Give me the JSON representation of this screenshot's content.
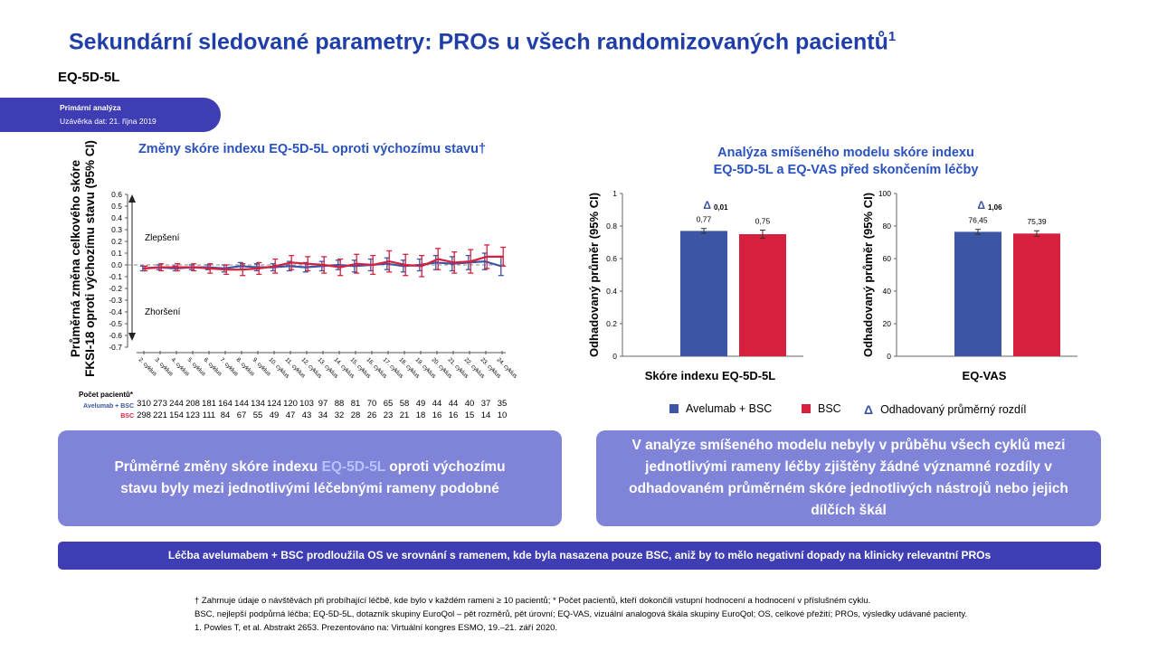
{
  "header": {
    "title": "Sekundární sledované parametry: PROs u všech randomizovaných pacientů",
    "title_sup": "1",
    "subtitle": "EQ-5D-5L",
    "pill_line1": "Primární analýza",
    "pill_line2": "Uzávěrka dat: 21. října 2019"
  },
  "left_chart": {
    "title": "Změny skóre indexu EQ-5D-5L oproti výchozímu stavu†",
    "ylabel_line1": "Průměrná změna celkového skóre",
    "ylabel_line2": "FKSI-18 oproti výchozímu stavu (95% CI)",
    "improve_label": "Zlepšení",
    "worsen_label": "Zhoršení",
    "counts_title": "Počet pacientů*",
    "counts_avelumab_label": "Avelumab + BSC",
    "counts_bsc_label": "BSC"
  },
  "right_panel": {
    "title_line1": "Analýza smíšeného modelu skóre indexu",
    "title_line2": "EQ-5D-5L a EQ-VAS před skončením léčby"
  },
  "legend": {
    "avelumab": "Avelumab  + BSC",
    "bsc": "BSC",
    "diff": "Odhadovaný  průměrný rozdíl"
  },
  "colors": {
    "avelumab": "#3c55a5",
    "bsc": "#d71f3e",
    "title_blue": "#1f3ea8",
    "box": "#7f84d8",
    "banner": "#3f3db4"
  },
  "chart_data": [
    {
      "type": "line",
      "x": [
        "2. cyklus",
        "3. cyklus",
        "4. cyklus",
        "5. cyklus",
        "6. cyklus",
        "7. cyklus",
        "8. cyklus",
        "9. cyklus",
        "10. cyklus",
        "11. cyklus",
        "12. cyklus",
        "13. cyklus",
        "14. cyklus",
        "15. cyklus",
        "16. cyklus",
        "17. cyklus",
        "18. cyklus",
        "19. cyklus",
        "20. cyklus",
        "21. cyklus",
        "22. cyklus",
        "23. cyklus",
        "24. cyklus"
      ],
      "ylim": [
        -0.7,
        0.6
      ],
      "yticks": [
        "0.6",
        "0.5",
        "0.4",
        "0.3",
        "0.2",
        "0.1",
        "0.0",
        "-0.1",
        "-0.2",
        "-0.3",
        "-0.4",
        "-0.5",
        "-0.6",
        "-0.7"
      ],
      "series": [
        {
          "name": "Avelumab + BSC",
          "values": [
            -0.03,
            -0.02,
            -0.03,
            -0.02,
            -0.02,
            -0.03,
            -0.01,
            -0.02,
            -0.02,
            -0.01,
            -0.02,
            -0.01,
            0.0,
            -0.01,
            0.0,
            0.01,
            -0.01,
            0.0,
            0.02,
            0.01,
            0.02,
            0.03,
            -0.01
          ],
          "ci": [
            0.02,
            0.02,
            0.02,
            0.02,
            0.02,
            0.03,
            0.03,
            0.03,
            0.03,
            0.04,
            0.04,
            0.04,
            0.04,
            0.05,
            0.05,
            0.05,
            0.05,
            0.05,
            0.06,
            0.06,
            0.06,
            0.07,
            0.08
          ]
        },
        {
          "name": "BSC",
          "values": [
            -0.03,
            -0.02,
            -0.02,
            -0.02,
            -0.03,
            -0.04,
            -0.04,
            -0.03,
            -0.01,
            0.02,
            0.01,
            0.0,
            -0.02,
            0.01,
            0.0,
            0.03,
            0.0,
            -0.01,
            0.05,
            0.02,
            0.03,
            0.07,
            0.07
          ],
          "ci": [
            0.02,
            0.03,
            0.03,
            0.03,
            0.04,
            0.04,
            0.05,
            0.05,
            0.06,
            0.06,
            0.06,
            0.07,
            0.07,
            0.08,
            0.08,
            0.09,
            0.09,
            0.09,
            0.09,
            0.09,
            0.1,
            0.1,
            0.08
          ]
        }
      ],
      "counts_avelumab": [
        "310",
        "273",
        "244",
        "208",
        "181",
        "164",
        "144",
        "134",
        "124",
        "120",
        "103",
        "97",
        "88",
        "81",
        "70",
        "65",
        "58",
        "49",
        "44",
        "44",
        "40",
        "37",
        "35"
      ],
      "counts_bsc": [
        "298",
        "221",
        "154",
        "123",
        "111",
        "84",
        "67",
        "55",
        "49",
        "47",
        "43",
        "34",
        "32",
        "28",
        "26",
        "23",
        "21",
        "18",
        "16",
        "16",
        "15",
        "14",
        "10"
      ]
    },
    {
      "type": "bar",
      "xlabel": "Skóre indexu EQ-5D-5L",
      "ylabel": "Odhadovaný průměr (95% CI)",
      "ylim": [
        0,
        1
      ],
      "yticks": [
        "1",
        "0.8",
        "0.6",
        "0.4",
        "0.2",
        "0"
      ],
      "values": [
        0.77,
        0.75
      ],
      "ci": [
        0.015,
        0.025
      ],
      "value_labels": [
        "0,77",
        "0,75"
      ],
      "diff_label": "0,01"
    },
    {
      "type": "bar",
      "xlabel": "EQ-VAS",
      "ylabel": "Odhadovaný průměr (95% CI)",
      "ylim": [
        0,
        100
      ],
      "yticks": [
        "100",
        "80",
        "60",
        "40",
        "20",
        "0"
      ],
      "values": [
        76.45,
        75.39
      ],
      "ci": [
        1.5,
        1.7
      ],
      "value_labels": [
        "76,45",
        "75,39"
      ],
      "diff_label": "1,06"
    }
  ],
  "box_left": {
    "part1": "Průměrné změny skóre indexu ",
    "highlight": "EQ-5D-5L",
    "part2": " oproti výchozímu stavu byly mezi jednotlivými léčebnými rameny podobné"
  },
  "box_right": "V analýze smíšeného modelu nebyly v průběhu všech cyklů mezi jednotlivými rameny léčby zjištěny žádné významné rozdíly v odhadovaném průměrném skóre jednotlivých nástrojů nebo jejich dílčích škál",
  "banner": "Léčba avelumabem + BSC prodloužila OS ve srovnání s ramenem, kde byla nasazena pouze BSC, aniž by to mělo negativní dopady na klinicky relevantní PROs",
  "footnotes": [
    "† Zahrnuje údaje o návštěvách při probíhající léčbě, kde bylo v každém rameni ≥ 10 pacientů; * Počet pacientů, kteří dokončili vstupní hodnocení a hodnocení v příslušném cyklu.",
    "BSC, nejlepší podpůrná léčba; EQ-5D-5L, dotazník skupiny EuroQol – pět rozměrů, pět úrovní; EQ-VAS, vizuální analogová škála skupiny EuroQol;  OS, celkové přežití; PROs,  výsledky udávané pacienty.",
    "1. Powles T, et al. Abstrakt 2653. Prezentováno na: Virtuální kongres ESMO, 19.–21. září 2020."
  ]
}
